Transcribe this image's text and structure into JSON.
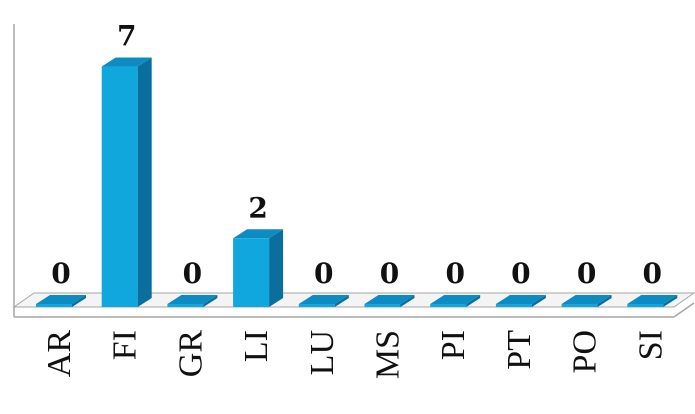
{
  "chart_data": {
    "type": "bar",
    "style": "3d-column",
    "categories": [
      "AR",
      "FI",
      "GR",
      "LI",
      "LU",
      "MS",
      "PI",
      "PT",
      "PO",
      "SI"
    ],
    "values": [
      0,
      7,
      0,
      2,
      0,
      0,
      0,
      0,
      0,
      0
    ],
    "data_labels": [
      "0",
      "7",
      "0",
      "2",
      "0",
      "0",
      "0",
      "0",
      "0",
      "0"
    ],
    "title": "",
    "xlabel": "",
    "ylabel": "",
    "ylim": [
      0,
      8.5
    ],
    "grid": false,
    "legend": "none",
    "colors": {
      "bar_front": "#10a7dd",
      "bar_side": "#0a6f9e",
      "bar_top": "#0d8cc3",
      "floor": "#f4f4f4",
      "axis": "#a6a6a6"
    }
  }
}
